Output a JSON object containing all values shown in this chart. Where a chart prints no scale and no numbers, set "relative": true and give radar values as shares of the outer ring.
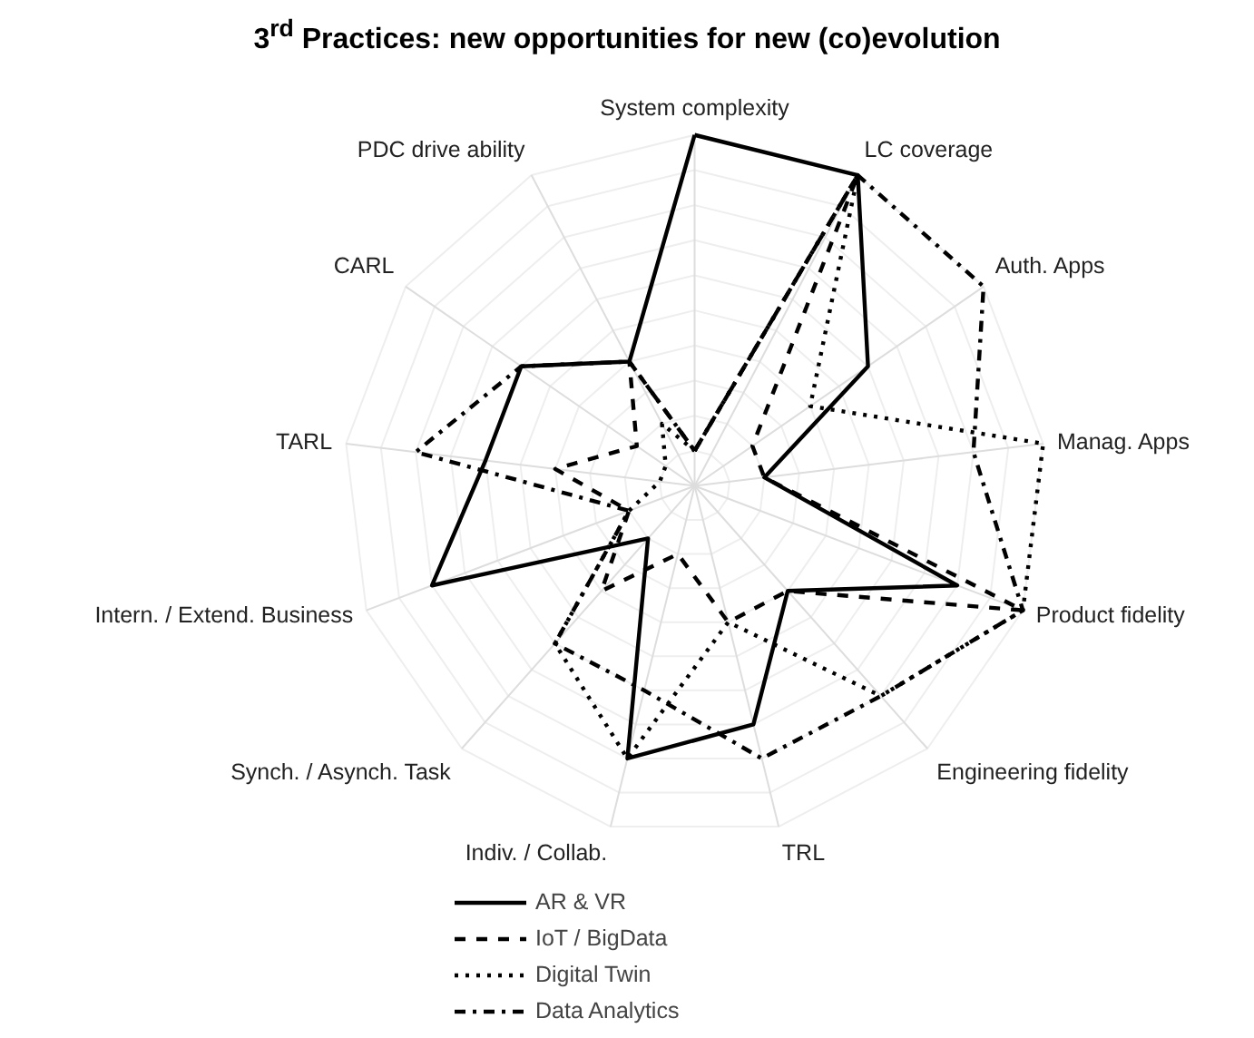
{
  "chart_data": {
    "type": "radar",
    "title": "3$^{rd}$ Practices: new opportunities for new (co)evolution",
    "relative": true,
    "categories": [
      "System complexity",
      "LC coverage",
      "Auth. Apps",
      "Manag. Apps",
      "Product fidelity",
      "Engineering fidelity",
      "TRL",
      "Indiv. / Collab.",
      "Synch. / Asynch. Task",
      "Intern. / Extend. Business",
      "TARL",
      "CARL",
      "PDC drive ability"
    ],
    "series": [
      {
        "name": "AR & VR",
        "color": "#000000",
        "line_style": "solid",
        "values": [
          1.0,
          1.0,
          0.6,
          0.2,
          0.8,
          0.4,
          0.7,
          0.8,
          0.2,
          0.8,
          0.6,
          0.6,
          0.4
        ]
      },
      {
        "name": "IoT / BigData",
        "color": "#000000",
        "line_style": "dashed",
        "values": [
          0.1,
          1.0,
          0.2,
          0.2,
          1.0,
          0.4,
          0.4,
          0.2,
          0.4,
          0.2,
          0.4,
          0.2,
          0.4
        ]
      },
      {
        "name": "Digital Twin",
        "color": "#000000",
        "line_style": "dotted",
        "values": [
          0.1,
          1.0,
          0.4,
          1.0,
          1.0,
          0.8,
          0.4,
          0.8,
          0.6,
          0.2,
          0.1,
          0.1,
          0.2
        ]
      },
      {
        "name": "Data Analytics",
        "color": "#000000",
        "line_style": "dashdot",
        "values": [
          0.1,
          1.0,
          1.0,
          0.8,
          1.0,
          0.8,
          0.8,
          0.6,
          0.6,
          0.2,
          0.8,
          0.6,
          0.4
        ]
      }
    ],
    "grid": true,
    "legend": "bottom"
  }
}
